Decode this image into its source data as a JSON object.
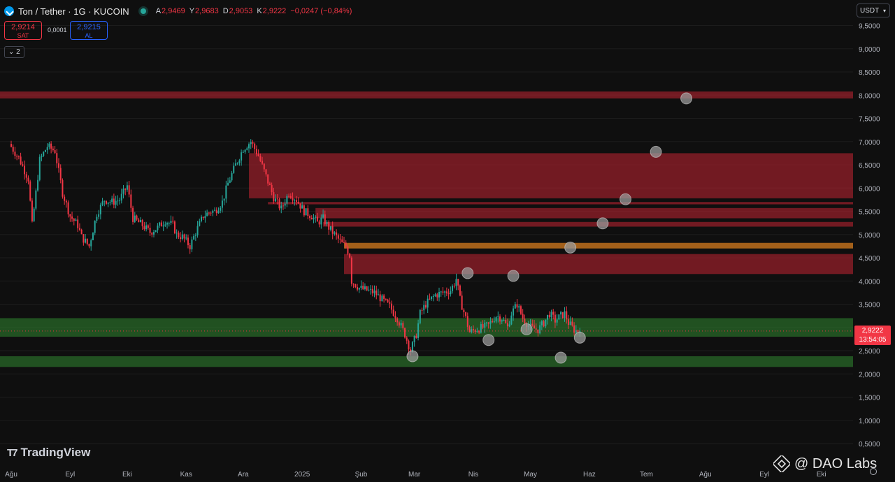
{
  "header": {
    "title": "Ton / Tether · 1G · KUCOIN",
    "ohlc": [
      {
        "k": "A",
        "v": "2,9469"
      },
      {
        "k": "Y",
        "v": "2,9683"
      },
      {
        "k": "D",
        "v": "2,9053"
      },
      {
        "k": "K",
        "v": "2,9222"
      }
    ],
    "change": "−0,0247 (−0,84%)"
  },
  "trade": {
    "sell_price": "2,9214",
    "sell_label": "SAT",
    "spread": "0,0001",
    "buy_price": "2,9215",
    "buy_label": "AL"
  },
  "indicator_toggle": "2",
  "currency": "USDT",
  "last_price": {
    "price": "2,9222",
    "countdown": "13:54:05"
  },
  "branding": {
    "platform": "TradingView",
    "watermark": "@ DAO Labs"
  },
  "colors": {
    "bg": "#0f0f0f",
    "up": "#26a69a",
    "down": "#f23645",
    "resistance": "#b0222f",
    "support": "#2d7a2d",
    "orange": "#e2831f"
  },
  "chart_data": {
    "type": "candlestick",
    "yticks": [
      0.5,
      1.0,
      1.5,
      2.0,
      2.5,
      3.0,
      3.5,
      4.0,
      4.5,
      5.0,
      5.5,
      6.0,
      6.5,
      7.0,
      7.5,
      8.0,
      8.5,
      9.0,
      9.5
    ],
    "ytick_labels": [
      "0,5000",
      "1,0000",
      "1,5000",
      "2,0000",
      "2,5000",
      "3,0000",
      "3,5000",
      "4,0000",
      "4,5000",
      "5,0000",
      "5,5000",
      "6,0000",
      "6,5000",
      "7,0000",
      "7,5000",
      "8,0000",
      "8,5000",
      "9,0000",
      "9,5000"
    ],
    "ylim": [
      0.3,
      9.8
    ],
    "x_labels": [
      {
        "t": "Ağu",
        "d": 0
      },
      {
        "t": "Eyl",
        "d": 31
      },
      {
        "t": "Eki",
        "d": 61
      },
      {
        "t": "Kas",
        "d": 92
      },
      {
        "t": "Ara",
        "d": 122
      },
      {
        "t": "2025",
        "d": 153
      },
      {
        "t": "Şub",
        "d": 184
      },
      {
        "t": "Mar",
        "d": 212
      },
      {
        "t": "Nis",
        "d": 243
      },
      {
        "t": "May",
        "d": 273
      },
      {
        "t": "Haz",
        "d": 304
      },
      {
        "t": "Tem",
        "d": 334
      },
      {
        "t": "Ağu",
        "d": 365
      },
      {
        "t": "Eyl",
        "d": 396
      },
      {
        "t": "Eki",
        "d": 426
      }
    ],
    "keypoints": [
      [
        0,
        6.95
      ],
      [
        5,
        6.65
      ],
      [
        10,
        6.2
      ],
      [
        12,
        5.2
      ],
      [
        16,
        6.6
      ],
      [
        20,
        6.9
      ],
      [
        24,
        6.8
      ],
      [
        28,
        5.9
      ],
      [
        32,
        5.4
      ],
      [
        36,
        5.2
      ],
      [
        38,
        4.95
      ],
      [
        42,
        4.75
      ],
      [
        46,
        5.45
      ],
      [
        50,
        5.75
      ],
      [
        54,
        5.7
      ],
      [
        58,
        5.75
      ],
      [
        62,
        6.05
      ],
      [
        65,
        5.35
      ],
      [
        70,
        5.2
      ],
      [
        74,
        5.05
      ],
      [
        78,
        5.15
      ],
      [
        82,
        5.3
      ],
      [
        86,
        5.2
      ],
      [
        88,
        5.0
      ],
      [
        91,
        4.95
      ],
      [
        95,
        4.75
      ],
      [
        98,
        5.05
      ],
      [
        102,
        5.4
      ],
      [
        106,
        5.5
      ],
      [
        108,
        5.5
      ],
      [
        112,
        5.7
      ],
      [
        115,
        6.1
      ],
      [
        119,
        6.5
      ],
      [
        123,
        6.85
      ],
      [
        127,
        7.0
      ],
      [
        131,
        6.7
      ],
      [
        135,
        6.25
      ],
      [
        139,
        5.8
      ],
      [
        143,
        5.55
      ],
      [
        147,
        5.9
      ],
      [
        151,
        5.75
      ],
      [
        155,
        5.5
      ],
      [
        159,
        5.4
      ],
      [
        162,
        5.25
      ],
      [
        165,
        5.35
      ],
      [
        168,
        5.15
      ],
      [
        172,
        4.95
      ],
      [
        175,
        4.8
      ],
      [
        177,
        4.75
      ],
      [
        179,
        4.55
      ],
      [
        180,
        4.0
      ],
      [
        184,
        3.85
      ],
      [
        188,
        3.8
      ],
      [
        192,
        3.75
      ],
      [
        196,
        3.6
      ],
      [
        200,
        3.45
      ],
      [
        204,
        3.2
      ],
      [
        208,
        2.85
      ],
      [
        211,
        2.5
      ],
      [
        214,
        2.85
      ],
      [
        216,
        3.3
      ],
      [
        219,
        3.5
      ],
      [
        224,
        3.7
      ],
      [
        228,
        3.75
      ],
      [
        232,
        3.8
      ],
      [
        234,
        3.95
      ],
      [
        235,
        4.05
      ],
      [
        237,
        3.6
      ],
      [
        240,
        3.2
      ],
      [
        242,
        2.9
      ],
      [
        245,
        2.95
      ],
      [
        249,
        3.0
      ],
      [
        252,
        3.05
      ],
      [
        256,
        3.25
      ],
      [
        259,
        3.2
      ],
      [
        262,
        3.0
      ],
      [
        264,
        3.3
      ],
      [
        267,
        3.5
      ],
      [
        270,
        3.2
      ],
      [
        274,
        3.0
      ],
      [
        278,
        2.95
      ],
      [
        281,
        3.1
      ],
      [
        284,
        3.3
      ],
      [
        287,
        3.15
      ],
      [
        290,
        3.25
      ],
      [
        292,
        3.3
      ],
      [
        294,
        3.1
      ],
      [
        297,
        2.95
      ],
      [
        299,
        2.92
      ]
    ],
    "zones": [
      {
        "lo": 7.93,
        "hi": 8.08,
        "kind": "resistance",
        "x_from_day": 0
      },
      {
        "lo": 5.78,
        "hi": 6.75,
        "kind": "resistance",
        "x_from_day": 125
      },
      {
        "lo": 5.65,
        "hi": 5.7,
        "kind": "resistance",
        "x_from_day": 135
      },
      {
        "lo": 5.35,
        "hi": 5.57,
        "kind": "resistance",
        "x_from_day": 160
      },
      {
        "lo": 5.17,
        "hi": 5.27,
        "kind": "resistance",
        "x_from_day": 164
      },
      {
        "lo": 4.7,
        "hi": 4.82,
        "kind": "orange",
        "x_from_day": 175
      },
      {
        "lo": 4.15,
        "hi": 4.58,
        "kind": "resistance",
        "x_from_day": 175
      },
      {
        "lo": 2.8,
        "hi": 3.2,
        "kind": "support",
        "x_from_day": 0
      },
      {
        "lo": 2.15,
        "hi": 2.38,
        "kind": "support",
        "x_from_day": 0
      }
    ],
    "markers": [
      {
        "d": 211,
        "v": 2.38
      },
      {
        "d": 240,
        "v": 4.17
      },
      {
        "d": 251,
        "v": 2.73
      },
      {
        "d": 264,
        "v": 4.11
      },
      {
        "d": 271,
        "v": 2.96
      },
      {
        "d": 289,
        "v": 2.35
      },
      {
        "d": 294,
        "v": 4.72
      },
      {
        "d": 299,
        "v": 2.78
      },
      {
        "d": 311,
        "v": 5.24
      },
      {
        "d": 323,
        "v": 5.76
      },
      {
        "d": 339,
        "v": 6.78
      },
      {
        "d": 355,
        "v": 7.93
      }
    ],
    "last_price": 2.9222
  }
}
